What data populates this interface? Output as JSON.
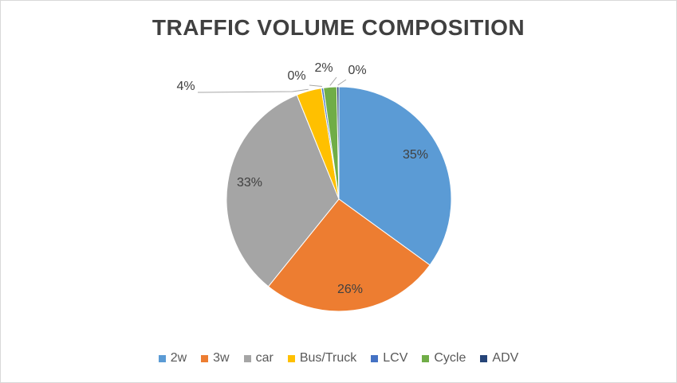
{
  "chart_data": {
    "type": "pie",
    "title": "TRAFFIC VOLUME COMPOSITION",
    "categories": [
      "2w",
      "3w",
      "car",
      "Bus/Truck",
      "LCV",
      "Cycle",
      "ADV"
    ],
    "values": [
      35.0,
      25.8,
      33.1,
      3.6,
      0.3,
      1.9,
      0.3
    ],
    "labels": [
      "35%",
      "26%",
      "33%",
      "4%",
      "0%",
      "2%",
      "0%"
    ],
    "colors": [
      "#5b9bd5",
      "#ed7d31",
      "#a5a5a5",
      "#ffc000",
      "#4472c4",
      "#70ad47",
      "#264478"
    ],
    "legend_position": "bottom",
    "start_angle_deg": 0,
    "direction": "clockwise"
  }
}
